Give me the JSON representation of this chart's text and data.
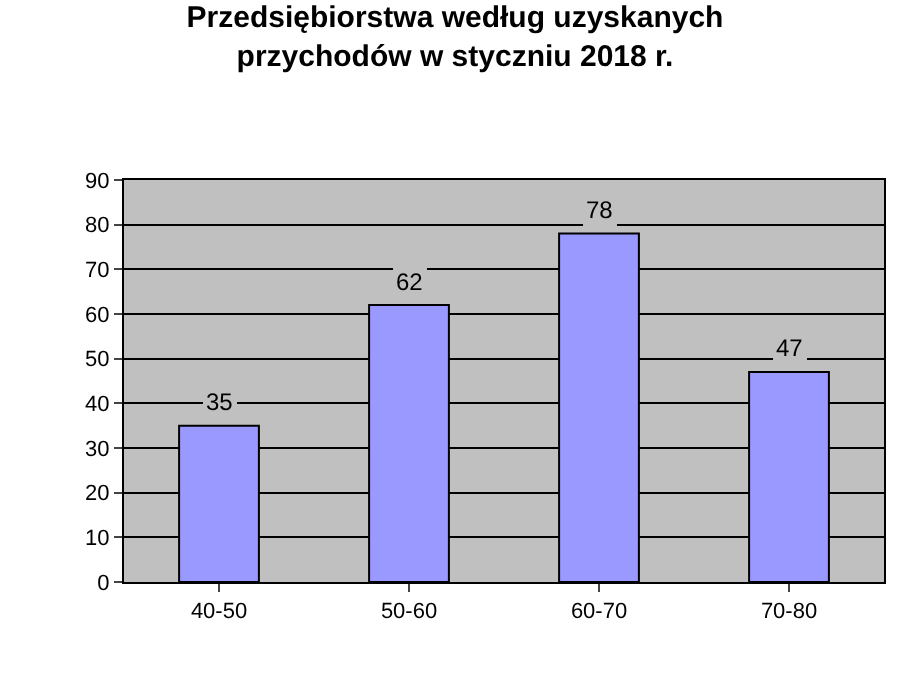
{
  "chart_data": {
    "type": "bar",
    "title": "Przedsiębiorstwa według uzyskanych\nprzychodów w styczniu 2018 r.",
    "categories": [
      "40-50",
      "50-60",
      "60-70",
      "70-80"
    ],
    "values": [
      35,
      62,
      78,
      47
    ],
    "color": "#9999ff",
    "ylim": [
      0,
      90
    ],
    "yticks": [
      0,
      10,
      20,
      30,
      40,
      50,
      60,
      70,
      80,
      90
    ],
    "grid": "y",
    "data_labels": true
  }
}
